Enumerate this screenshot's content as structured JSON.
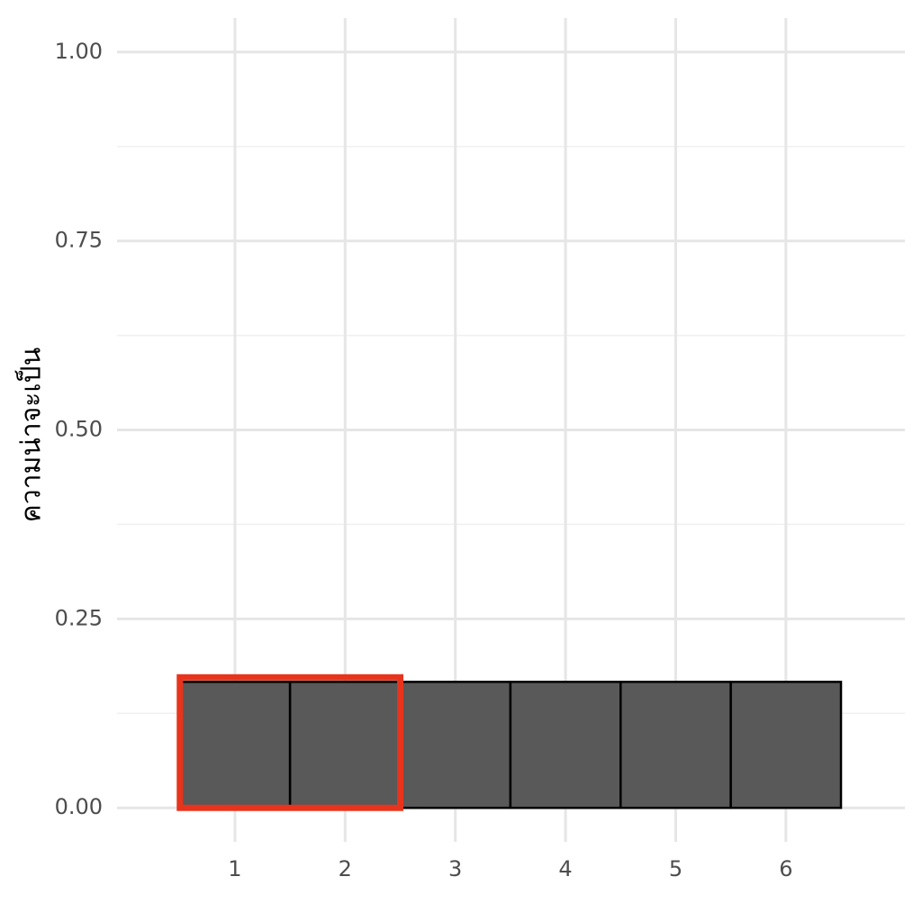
{
  "chart_data": {
    "type": "bar",
    "y_label": "ความน่าจะเป็น",
    "x": [
      1,
      2,
      3,
      4,
      5,
      6
    ],
    "values": [
      0.1667,
      0.1667,
      0.1667,
      0.1667,
      0.1667,
      0.1667
    ],
    "color": "#595959",
    "edge_color": "#000000",
    "xlim": [
      -0.07,
      7.08
    ],
    "xticks": [
      1,
      2,
      3,
      4,
      5,
      6
    ],
    "ylim": [
      -0.045,
      1.045
    ],
    "yticks": [
      {
        "value": 0,
        "label": "0.00"
      },
      {
        "value": 0.25,
        "label": "0.25"
      },
      {
        "value": 0.5,
        "label": "0.50"
      },
      {
        "value": 0.75,
        "label": "0.75"
      },
      {
        "value": 1,
        "label": "1.00"
      }
    ],
    "minor_yticks": [
      0.125,
      0.375,
      0.625,
      0.875
    ],
    "grid": true,
    "highlight": {
      "x": [
        1,
        2
      ],
      "color": "#e8341c"
    }
  }
}
